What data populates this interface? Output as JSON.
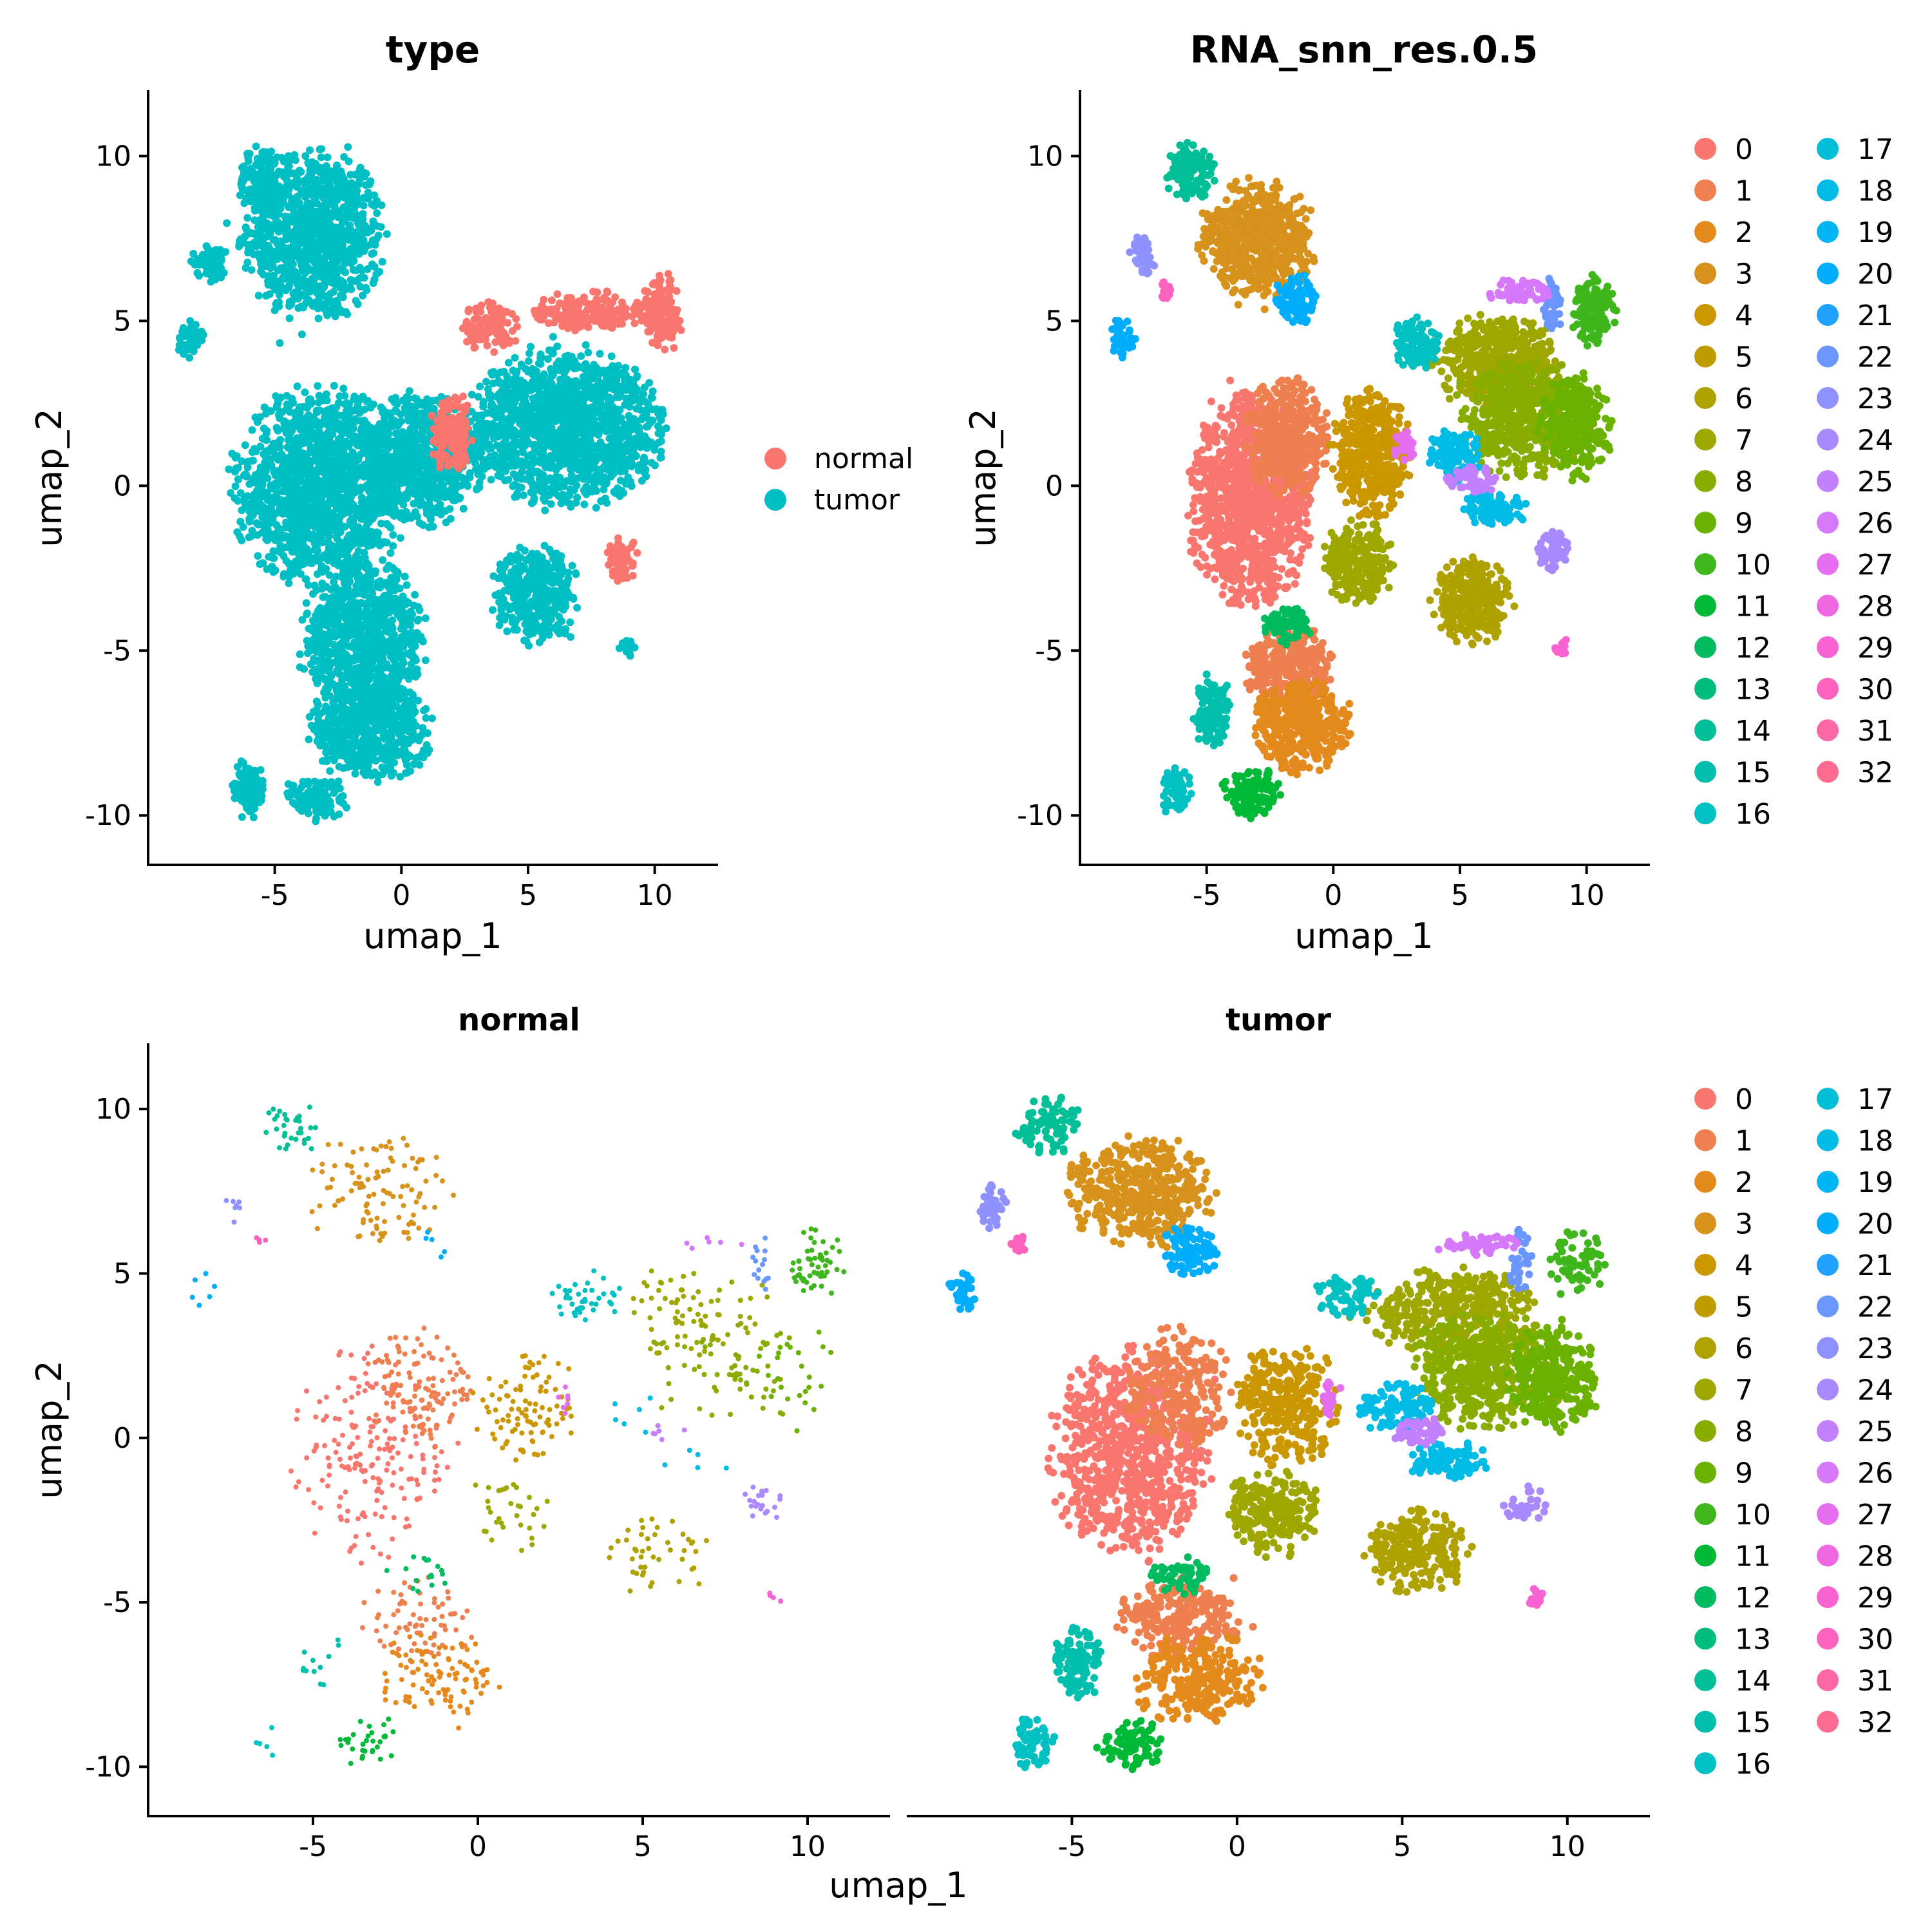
{
  "chart_data": [
    {
      "type": "scatter",
      "title": "type",
      "xlabel": "umap_1",
      "ylabel": "umap_2",
      "xlim": [
        -10,
        12.5
      ],
      "ylim": [
        -11.5,
        12
      ],
      "xticks": [
        -5,
        0,
        5,
        10
      ],
      "yticks": [
        -10,
        -5,
        0,
        5,
        10
      ],
      "xtick_labels": [
        "-5",
        "0",
        "5",
        "10"
      ],
      "ytick_labels": [
        "-10",
        "-5",
        "0",
        "5",
        "10"
      ],
      "legend_placement": "right",
      "series": [
        {
          "name": "normal",
          "color": "#F8766D",
          "regions": [
            {
              "x": 3.5,
              "y": 4.8,
              "rx": 1.1,
              "ry": 0.8
            },
            {
              "x": 7.5,
              "y": 5.3,
              "rx": 2.3,
              "ry": 0.6
            },
            {
              "x": 10.3,
              "y": 5.3,
              "rx": 0.8,
              "ry": 1.2
            },
            {
              "x": 2.0,
              "y": 1.6,
              "rx": 0.9,
              "ry": 1.2
            },
            {
              "x": 8.7,
              "y": -2.2,
              "rx": 0.6,
              "ry": 0.7
            }
          ]
        },
        {
          "name": "tumor",
          "color": "#00BFC4",
          "regions": [
            {
              "x": -3.5,
              "y": 7.6,
              "rx": 2.8,
              "ry": 2.6
            },
            {
              "x": -5.5,
              "y": 9.3,
              "rx": 1.0,
              "ry": 1.0
            },
            {
              "x": -7.5,
              "y": 6.8,
              "rx": 0.8,
              "ry": 0.6
            },
            {
              "x": -8.3,
              "y": 4.5,
              "rx": 0.5,
              "ry": 0.6
            },
            {
              "x": -3.2,
              "y": 0.0,
              "rx": 3.5,
              "ry": 3.0
            },
            {
              "x": -1.5,
              "y": -4.8,
              "rx": 2.5,
              "ry": 2.5
            },
            {
              "x": 0.7,
              "y": 0.8,
              "rx": 2.5,
              "ry": 2.0
            },
            {
              "x": -1.2,
              "y": -7.4,
              "rx": 2.4,
              "ry": 1.6
            },
            {
              "x": -3.3,
              "y": -9.5,
              "rx": 1.2,
              "ry": 0.7
            },
            {
              "x": -6.0,
              "y": -9.2,
              "rx": 0.7,
              "ry": 0.9
            },
            {
              "x": 6.5,
              "y": 1.8,
              "rx": 4.0,
              "ry": 2.4
            },
            {
              "x": 5.3,
              "y": -3.3,
              "rx": 1.7,
              "ry": 1.5
            },
            {
              "x": 8.9,
              "y": -4.9,
              "rx": 0.3,
              "ry": 0.3
            }
          ]
        }
      ]
    },
    {
      "type": "scatter",
      "title": "RNA_snn_res.0.5",
      "xlabel": "umap_1",
      "ylabel": "umap_2",
      "xlim": [
        -10,
        12.5
      ],
      "ylim": [
        -11.5,
        12
      ],
      "xticks": [
        -5,
        0,
        5,
        10
      ],
      "yticks": [
        -10,
        -5,
        0,
        5,
        10
      ],
      "xtick_labels": [
        "-5",
        "0",
        "5",
        "10"
      ],
      "ytick_labels": [
        "-10",
        "-5",
        "0",
        "5",
        "10"
      ],
      "legend_placement": "right"
    },
    {
      "type": "scatter",
      "title": "normal",
      "xlabel": "umap_1",
      "ylabel": "umap_2",
      "xlim": [
        -10,
        12.5
      ],
      "ylim": [
        -11.5,
        12
      ],
      "xticks": [
        -5,
        0,
        5,
        10
      ],
      "yticks": [
        -10,
        -5,
        0,
        5,
        10
      ],
      "xtick_labels": [
        "-5",
        "0",
        "5",
        "10"
      ],
      "ytick_labels": [
        "-10",
        "-5",
        "0",
        "5",
        "10"
      ]
    },
    {
      "type": "scatter",
      "title": "tumor",
      "xlabel": "umap_1",
      "ylabel": "umap_2",
      "xlim": [
        -10,
        12.5
      ],
      "ylim": [
        -11.5,
        12
      ],
      "xticks": [
        -5,
        0,
        5,
        10
      ],
      "xtick_labels": [
        "-5",
        "0",
        "5",
        "10"
      ],
      "legend_placement": "right"
    }
  ],
  "clusters": [
    {
      "name": "0",
      "color": "#F8766D"
    },
    {
      "name": "1",
      "color": "#EE7F4F"
    },
    {
      "name": "2",
      "color": "#E48A1C"
    },
    {
      "name": "3",
      "color": "#D6921A"
    },
    {
      "name": "4",
      "color": "#CB9700"
    },
    {
      "name": "5",
      "color": "#BE9C00"
    },
    {
      "name": "6",
      "color": "#AFA100"
    },
    {
      "name": "7",
      "color": "#9EA700"
    },
    {
      "name": "8",
      "color": "#88AC00"
    },
    {
      "name": "9",
      "color": "#6BB100"
    },
    {
      "name": "10",
      "color": "#3FB61B"
    },
    {
      "name": "11",
      "color": "#00B937"
    },
    {
      "name": "12",
      "color": "#00BB5F"
    },
    {
      "name": "13",
      "color": "#00BD7C"
    },
    {
      "name": "14",
      "color": "#00BF96"
    },
    {
      "name": "15",
      "color": "#00C0AD"
    },
    {
      "name": "16",
      "color": "#00C0C2"
    },
    {
      "name": "17",
      "color": "#00BED5"
    },
    {
      "name": "18",
      "color": "#00BBE5"
    },
    {
      "name": "19",
      "color": "#00B5F2"
    },
    {
      "name": "20",
      "color": "#00ACFC"
    },
    {
      "name": "21",
      "color": "#1FA1FF"
    },
    {
      "name": "22",
      "color": "#6B96FF"
    },
    {
      "name": "23",
      "color": "#8F91FF"
    },
    {
      "name": "24",
      "color": "#AA89FF"
    },
    {
      "name": "25",
      "color": "#C280FF"
    },
    {
      "name": "26",
      "color": "#D578F9"
    },
    {
      "name": "27",
      "color": "#E46EEF"
    },
    {
      "name": "28",
      "color": "#EF67E3"
    },
    {
      "name": "29",
      "color": "#F863D2"
    },
    {
      "name": "30",
      "color": "#FD63BE"
    },
    {
      "name": "31",
      "color": "#FF66A7"
    },
    {
      "name": "32",
      "color": "#FF6C8F"
    }
  ],
  "cluster_regions": [
    {
      "c": 0,
      "x": -3.2,
      "y": -0.5,
      "rx": 2.5,
      "ry": 3.2,
      "normal": 0.35
    },
    {
      "c": 1,
      "x": -1.8,
      "y": 1.5,
      "rx": 1.6,
      "ry": 1.8,
      "normal": 0.6
    },
    {
      "c": 1,
      "x": -1.8,
      "y": -5.5,
      "rx": 1.8,
      "ry": 1.3,
      "normal": 0.4
    },
    {
      "c": 2,
      "x": -1.2,
      "y": -7.3,
      "rx": 2.0,
      "ry": 1.4,
      "normal": 0.5
    },
    {
      "c": 3,
      "x": -3.0,
      "y": 7.5,
      "rx": 2.3,
      "ry": 1.8,
      "normal": 0.35
    },
    {
      "c": 4,
      "x": 1.5,
      "y": 1.0,
      "rx": 1.6,
      "ry": 1.9,
      "normal": 0.45
    },
    {
      "c": 6,
      "x": 5.5,
      "y": -3.5,
      "rx": 1.6,
      "ry": 1.3,
      "normal": 0.3
    },
    {
      "c": 7,
      "x": 6.5,
      "y": 3.8,
      "rx": 2.5,
      "ry": 1.4,
      "normal": 0.3
    },
    {
      "c": 7,
      "x": 1.0,
      "y": -2.3,
      "rx": 1.4,
      "ry": 1.3,
      "normal": 0.25
    },
    {
      "c": 8,
      "x": 7.5,
      "y": 2.0,
      "rx": 2.4,
      "ry": 1.8,
      "normal": 0.2
    },
    {
      "c": 9,
      "x": 9.6,
      "y": 1.8,
      "rx": 1.4,
      "ry": 1.6,
      "normal": 0.15
    },
    {
      "c": 10,
      "x": 10.3,
      "y": 5.3,
      "rx": 0.9,
      "ry": 1.1,
      "normal": 0.8
    },
    {
      "c": 11,
      "x": -3.2,
      "y": -9.3,
      "rx": 1.1,
      "ry": 0.8,
      "normal": 0.5
    },
    {
      "c": 12,
      "x": -1.8,
      "y": -4.2,
      "rx": 1.0,
      "ry": 0.6,
      "normal": 0.4
    },
    {
      "c": 14,
      "x": -5.7,
      "y": 9.5,
      "rx": 1.0,
      "ry": 0.9,
      "normal": 0.5
    },
    {
      "c": 15,
      "x": -4.8,
      "y": -6.8,
      "rx": 0.8,
      "ry": 1.1,
      "normal": 0.2
    },
    {
      "c": 16,
      "x": 3.3,
      "y": 4.3,
      "rx": 1.0,
      "ry": 0.8,
      "normal": 0.7
    },
    {
      "c": 16,
      "x": -6.2,
      "y": -9.3,
      "rx": 0.6,
      "ry": 0.8,
      "normal": 0.15
    },
    {
      "c": 18,
      "x": 4.8,
      "y": 0.9,
      "rx": 1.1,
      "ry": 0.8,
      "normal": 0.1
    },
    {
      "c": 18,
      "x": 6.4,
      "y": -0.7,
      "rx": 1.2,
      "ry": 0.6,
      "normal": 0.1
    },
    {
      "c": 20,
      "x": -8.3,
      "y": 4.5,
      "rx": 0.5,
      "ry": 0.6,
      "normal": 0.3
    },
    {
      "c": 20,
      "x": -1.4,
      "y": 5.7,
      "rx": 0.9,
      "ry": 0.8,
      "normal": 0.1
    },
    {
      "c": 22,
      "x": 8.6,
      "y": 5.4,
      "rx": 0.4,
      "ry": 0.9,
      "normal": 0.6
    },
    {
      "c": 23,
      "x": -7.5,
      "y": 7.0,
      "rx": 0.5,
      "ry": 0.7,
      "normal": 0.3
    },
    {
      "c": 24,
      "x": 8.7,
      "y": -2.0,
      "rx": 0.7,
      "ry": 0.6,
      "normal": 0.7
    },
    {
      "c": 25,
      "x": 5.5,
      "y": 0.2,
      "rx": 1.0,
      "ry": 0.4,
      "normal": 0.2
    },
    {
      "c": 26,
      "x": 7.3,
      "y": 5.9,
      "rx": 1.3,
      "ry": 0.35,
      "normal": 0.2
    },
    {
      "c": 27,
      "x": 2.8,
      "y": 1.2,
      "rx": 0.4,
      "ry": 0.5,
      "normal": 0.5
    },
    {
      "c": 29,
      "x": 9.0,
      "y": -4.9,
      "rx": 0.3,
      "ry": 0.3,
      "normal": 0.05
    },
    {
      "c": 30,
      "x": -6.6,
      "y": 5.9,
      "rx": 0.25,
      "ry": 0.3,
      "normal": 0.3
    }
  ]
}
